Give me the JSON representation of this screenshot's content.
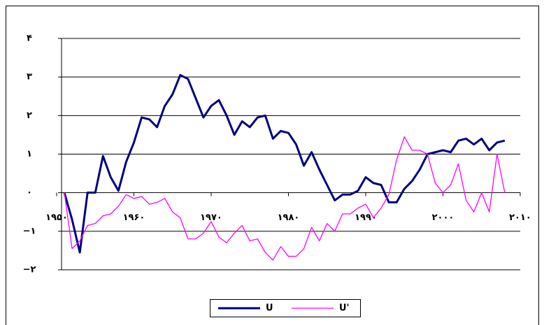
{
  "chart_data": {
    "type": "line",
    "x": [
      1951,
      1952,
      1953,
      1954,
      1955,
      1956,
      1957,
      1958,
      1959,
      1960,
      1961,
      1962,
      1963,
      1964,
      1965,
      1966,
      1967,
      1968,
      1969,
      1970,
      1971,
      1972,
      1973,
      1974,
      1975,
      1976,
      1977,
      1978,
      1979,
      1980,
      1981,
      1982,
      1983,
      1984,
      1985,
      1986,
      1987,
      1988,
      1989,
      1990,
      1991,
      1992,
      1993,
      1994,
      1995,
      1996,
      1997,
      1998,
      1999,
      2000,
      2001,
      2002,
      2003,
      2004,
      2005,
      2006,
      2007,
      2008
    ],
    "series": [
      {
        "name": "U",
        "color": "#000080",
        "values": [
          0,
          -0.7,
          -1.55,
          0,
          0,
          0.95,
          0.4,
          0.05,
          0.8,
          1.3,
          1.95,
          1.9,
          1.7,
          2.25,
          2.55,
          3.05,
          2.95,
          2.45,
          1.95,
          2.25,
          2.4,
          2.0,
          1.5,
          1.85,
          1.7,
          1.95,
          2.0,
          1.4,
          1.6,
          1.55,
          1.25,
          0.7,
          1.05,
          0.6,
          0.2,
          -0.2,
          -0.05,
          -0.05,
          0.05,
          0.4,
          0.25,
          0.2,
          -0.25,
          -0.25,
          0.1,
          0.3,
          0.6,
          1.0,
          1.05,
          1.1,
          1.05,
          1.35,
          1.4,
          1.25,
          1.4,
          1.1,
          1.3,
          1.35
        ]
      },
      {
        "name": "U'",
        "color": "#ff00ff",
        "values": [
          0,
          -1.45,
          -1.25,
          -0.85,
          -0.8,
          -0.6,
          -0.55,
          -0.35,
          -0.05,
          -0.15,
          -0.1,
          -0.3,
          -0.25,
          -0.15,
          -0.5,
          -0.65,
          -1.2,
          -1.2,
          -1.05,
          -0.75,
          -1.15,
          -1.3,
          -1.05,
          -0.85,
          -1.25,
          -1.2,
          -1.55,
          -1.75,
          -1.4,
          -1.65,
          -1.65,
          -1.45,
          -0.9,
          -1.25,
          -0.8,
          -1.0,
          -0.55,
          -0.55,
          -0.4,
          -0.3,
          -0.65,
          -0.4,
          -0.05,
          0.85,
          1.45,
          1.1,
          1.1,
          1.0,
          0.25,
          0.0,
          0.2,
          0.75,
          -0.2,
          -0.5,
          0.0,
          -0.5,
          1.0,
          0.0
        ]
      }
    ],
    "xlim": [
      1950,
      2010
    ],
    "xticks": [
      {
        "value": 1950,
        "label": "۱۹۵۰"
      },
      {
        "value": 1960,
        "label": "۱۹۶۰"
      },
      {
        "value": 1970,
        "label": "۱۹۷۰"
      },
      {
        "value": 1980,
        "label": "۱۹۸۰"
      },
      {
        "value": 1990,
        "label": "۱۹۹۰"
      },
      {
        "value": 2000,
        "label": "۲۰۰۰"
      },
      {
        "value": 2010,
        "label": "۲۰۱۰"
      }
    ],
    "ylim": [
      -2,
      4
    ],
    "yticks": [
      {
        "value": -2,
        "label": "−۲"
      },
      {
        "value": -1,
        "label": "−۱"
      },
      {
        "value": 0,
        "label": "۰"
      },
      {
        "value": 1,
        "label": "۱"
      },
      {
        "value": 2,
        "label": "۲"
      },
      {
        "value": 3,
        "label": "۳"
      },
      {
        "value": 4,
        "label": "۴"
      }
    ],
    "grid": true,
    "legend": "bottom"
  }
}
